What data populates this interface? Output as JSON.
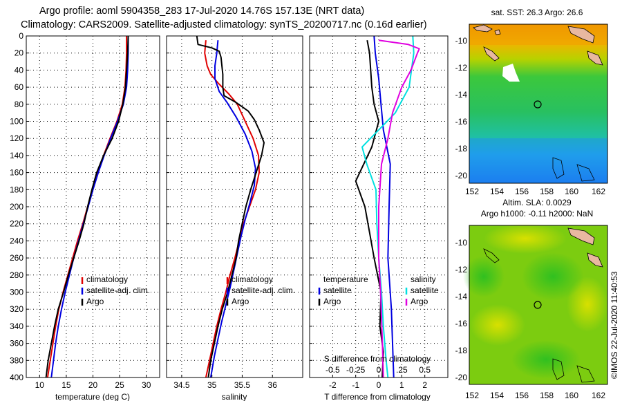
{
  "title_line1": "Argo profile: aoml 5904358_283 17-Jul-2020 14.76S 157.13E (NRT data)",
  "title_line2": "Climatology: CARS2009. Satellite-adjusted climatology: synTS_20200717.nc (0.16d earlier)",
  "imos_stamp": "©IMOS 22-Jul-2020 11:40:53",
  "colors": {
    "climatology": "#e00000",
    "satellite": "#0000e0",
    "argo": "#000000",
    "sat_salinity": "#00e0e0",
    "argo_salinity": "#e000e0"
  },
  "chart_data": [
    {
      "type": "line",
      "title": "",
      "xlabel": "temperature (deg C)",
      "ylabel": "depth",
      "xlim": [
        7.5,
        32.5
      ],
      "ylim": [
        400,
        0
      ],
      "xticks": [
        10,
        15,
        20,
        25,
        30
      ],
      "xtick_labels": [
        "10",
        "15",
        "20",
        "25",
        "30"
      ],
      "yticks": [
        0,
        20,
        40,
        60,
        80,
        100,
        120,
        140,
        160,
        180,
        200,
        220,
        240,
        260,
        280,
        300,
        320,
        340,
        360,
        380,
        400
      ],
      "legend": [
        "climatology",
        "satellite-adj. clim.",
        "Argo"
      ],
      "series": [
        {
          "name": "climatology",
          "color": "#e00000",
          "points": [
            [
              26.3,
              0
            ],
            [
              26.3,
              20
            ],
            [
              26.2,
              40
            ],
            [
              26.0,
              60
            ],
            [
              25.5,
              80
            ],
            [
              24.5,
              100
            ],
            [
              23.2,
              120
            ],
            [
              22.0,
              140
            ],
            [
              20.9,
              160
            ],
            [
              19.9,
              180
            ],
            [
              19.0,
              200
            ],
            [
              18.1,
              220
            ],
            [
              17.1,
              240
            ],
            [
              16.2,
              260
            ],
            [
              15.3,
              280
            ],
            [
              14.4,
              300
            ],
            [
              13.6,
              320
            ],
            [
              13.0,
              340
            ],
            [
              12.5,
              360
            ],
            [
              12.0,
              380
            ],
            [
              11.5,
              400
            ]
          ]
        },
        {
          "name": "satellite-adj. clim.",
          "color": "#0000e0",
          "points": [
            [
              26.6,
              0
            ],
            [
              26.6,
              20
            ],
            [
              26.5,
              40
            ],
            [
              26.3,
              60
            ],
            [
              25.7,
              80
            ],
            [
              24.6,
              100
            ],
            [
              23.3,
              120
            ],
            [
              22.1,
              140
            ],
            [
              21.0,
              160
            ],
            [
              20.0,
              180
            ],
            [
              19.1,
              200
            ],
            [
              18.2,
              220
            ],
            [
              17.3,
              240
            ],
            [
              16.4,
              260
            ],
            [
              15.6,
              280
            ],
            [
              14.8,
              300
            ],
            [
              14.1,
              320
            ],
            [
              13.5,
              340
            ],
            [
              13.0,
              360
            ],
            [
              12.6,
              380
            ],
            [
              12.2,
              400
            ]
          ]
        },
        {
          "name": "Argo",
          "color": "#000000",
          "points": [
            [
              26.6,
              0
            ],
            [
              26.5,
              20
            ],
            [
              26.3,
              40
            ],
            [
              26.1,
              60
            ],
            [
              25.6,
              80
            ],
            [
              24.8,
              100
            ],
            [
              23.6,
              120
            ],
            [
              22.0,
              140
            ],
            [
              20.7,
              160
            ],
            [
              19.8,
              180
            ],
            [
              19.0,
              200
            ],
            [
              18.3,
              220
            ],
            [
              17.4,
              240
            ],
            [
              16.4,
              260
            ],
            [
              15.4,
              280
            ],
            [
              14.5,
              300
            ],
            [
              13.5,
              320
            ],
            [
              12.8,
              340
            ],
            [
              12.2,
              360
            ],
            [
              11.6,
              380
            ],
            [
              11.2,
              400
            ]
          ]
        }
      ]
    },
    {
      "type": "line",
      "title": "",
      "xlabel": "salinity",
      "ylabel": "depth",
      "xlim": [
        34.25,
        36.5
      ],
      "ylim": [
        400,
        0
      ],
      "xticks": [
        34.5,
        35,
        35.5,
        36
      ],
      "xtick_labels": [
        "34.5",
        "35",
        "35.5",
        "36"
      ],
      "legend": [
        "climatology",
        "satellite-adj. clim.",
        "Argo"
      ],
      "series": [
        {
          "name": "climatology",
          "color": "#e00000",
          "points": [
            [
              34.9,
              5
            ],
            [
              34.88,
              20
            ],
            [
              34.92,
              35
            ],
            [
              34.98,
              45
            ],
            [
              35.1,
              55
            ],
            [
              35.28,
              68
            ],
            [
              35.42,
              80
            ],
            [
              35.55,
              100
            ],
            [
              35.68,
              120
            ],
            [
              35.77,
              140
            ],
            [
              35.78,
              160
            ],
            [
              35.72,
              180
            ],
            [
              35.62,
              200
            ],
            [
              35.52,
              220
            ],
            [
              35.45,
              240
            ],
            [
              35.38,
              260
            ],
            [
              35.3,
              280
            ],
            [
              35.23,
              300
            ],
            [
              35.15,
              320
            ],
            [
              35.08,
              340
            ],
            [
              35.02,
              360
            ],
            [
              34.96,
              380
            ],
            [
              34.9,
              400
            ]
          ]
        },
        {
          "name": "satellite-adj. clim.",
          "color": "#0000e0",
          "points": [
            [
              35.1,
              5
            ],
            [
              35.08,
              20
            ],
            [
              35.05,
              35
            ],
            [
              35.05,
              50
            ],
            [
              35.12,
              65
            ],
            [
              35.25,
              78
            ],
            [
              35.4,
              95
            ],
            [
              35.55,
              115
            ],
            [
              35.66,
              135
            ],
            [
              35.72,
              155
            ],
            [
              35.7,
              175
            ],
            [
              35.63,
              195
            ],
            [
              35.55,
              215
            ],
            [
              35.48,
              235
            ],
            [
              35.42,
              255
            ],
            [
              35.36,
              275
            ],
            [
              35.3,
              295
            ],
            [
              35.23,
              315
            ],
            [
              35.16,
              335
            ],
            [
              35.1,
              355
            ],
            [
              35.04,
              375
            ],
            [
              34.98,
              400
            ]
          ]
        },
        {
          "name": "Argo",
          "color": "#000000",
          "points": [
            [
              34.75,
              0
            ],
            [
              34.77,
              10
            ],
            [
              35.0,
              14
            ],
            [
              35.12,
              18
            ],
            [
              35.15,
              25
            ],
            [
              35.18,
              45
            ],
            [
              35.18,
              60
            ],
            [
              35.2,
              70
            ],
            [
              35.4,
              78
            ],
            [
              35.6,
              88
            ],
            [
              35.7,
              98
            ],
            [
              35.78,
              110
            ],
            [
              35.86,
              125
            ],
            [
              35.82,
              140
            ],
            [
              35.73,
              160
            ],
            [
              35.64,
              180
            ],
            [
              35.56,
              200
            ],
            [
              35.5,
              220
            ],
            [
              35.44,
              240
            ],
            [
              35.4,
              260
            ],
            [
              35.33,
              280
            ],
            [
              35.26,
              300
            ],
            [
              35.17,
              320
            ],
            [
              35.1,
              340
            ],
            [
              35.04,
              360
            ],
            [
              34.98,
              380
            ],
            [
              34.94,
              400
            ]
          ]
        }
      ]
    },
    {
      "type": "line",
      "title": "",
      "xlabel": "T difference from climatology",
      "secondary_xlabel": "S difference from climatology",
      "xlim": [
        -3,
        3
      ],
      "ylim": [
        400,
        0
      ],
      "xticks": [
        -2,
        -1,
        0,
        1,
        2
      ],
      "xtick_labels": [
        "-2",
        "-1",
        "0",
        "1",
        "2"
      ],
      "secondary_xticks": [
        -0.5,
        -0.25,
        0,
        0.25,
        0.5
      ],
      "secondary_xtick_labels": [
        "-0.5",
        "-0.25",
        "0",
        ".25",
        "0.5"
      ],
      "legend_temperature_header": "temperature",
      "legend_salinity_header": "salinity",
      "legend": [
        "satellite",
        "Argo",
        "satellite",
        "Argo"
      ],
      "series": [
        {
          "name": "temperature satellite",
          "color": "#0000e0",
          "points": [
            [
              -0.2,
              0
            ],
            [
              -0.15,
              20
            ],
            [
              0.0,
              50
            ],
            [
              0.1,
              80
            ],
            [
              0.2,
              110
            ],
            [
              0.5,
              150
            ],
            [
              0.45,
              200
            ],
            [
              0.4,
              260
            ],
            [
              0.55,
              320
            ],
            [
              0.6,
              360
            ],
            [
              0.65,
              400
            ]
          ]
        },
        {
          "name": "temperature Argo",
          "color": "#000000",
          "points": [
            [
              -0.5,
              5
            ],
            [
              -0.4,
              20
            ],
            [
              -0.3,
              60
            ],
            [
              -0.2,
              80
            ],
            [
              0.0,
              100
            ],
            [
              -0.3,
              130
            ],
            [
              -1.0,
              170
            ],
            [
              -0.6,
              200
            ],
            [
              -0.4,
              230
            ],
            [
              -0.2,
              260
            ],
            [
              0.1,
              300
            ],
            [
              0.05,
              340
            ],
            [
              0.2,
              370
            ],
            [
              0.15,
              400
            ]
          ]
        },
        {
          "name": "salinity satellite",
          "color": "#00e0e0",
          "points": [
            [
              0.37,
              0
            ],
            [
              0.38,
              20
            ],
            [
              0.33,
              60
            ],
            [
              0.18,
              90
            ],
            [
              0.0,
              110
            ],
            [
              -0.18,
              130
            ],
            [
              -0.13,
              150
            ],
            [
              -0.03,
              180
            ],
            [
              -0.02,
              220
            ],
            [
              0.0,
              260
            ],
            [
              0.03,
              300
            ],
            [
              0.05,
              340
            ],
            [
              0.08,
              380
            ],
            [
              0.1,
              400
            ]
          ]
        },
        {
          "name": "salinity Argo",
          "color": "#e000e0",
          "points": [
            [
              0.0,
              5
            ],
            [
              0.32,
              10
            ],
            [
              0.44,
              15
            ],
            [
              0.42,
              20
            ],
            [
              0.35,
              40
            ],
            [
              0.25,
              60
            ],
            [
              0.15,
              90
            ],
            [
              0.1,
              120
            ],
            [
              0.03,
              150
            ],
            [
              0.0,
              200
            ],
            [
              0.0,
              260
            ],
            [
              0.02,
              300
            ],
            [
              0.04,
              360
            ],
            [
              0.05,
              400
            ]
          ]
        }
      ]
    }
  ],
  "maps": [
    {
      "title": "sat. SST: 26.3 Argo: 26.6",
      "yticks": [
        "-10",
        "-12",
        "-14",
        "-16",
        "-18",
        "-20"
      ],
      "xticks": [
        "152",
        "154",
        "156",
        "158",
        "160",
        "162"
      ],
      "bottom_caption": "Altim. SLA: 0.0029"
    },
    {
      "title": "Argo h1000: -0.11 h2000: NaN",
      "yticks": [
        "-10",
        "-12",
        "-14",
        "-16",
        "-18",
        "-20"
      ],
      "xticks": [
        "152",
        "154",
        "156",
        "158",
        "160",
        "162"
      ]
    }
  ]
}
